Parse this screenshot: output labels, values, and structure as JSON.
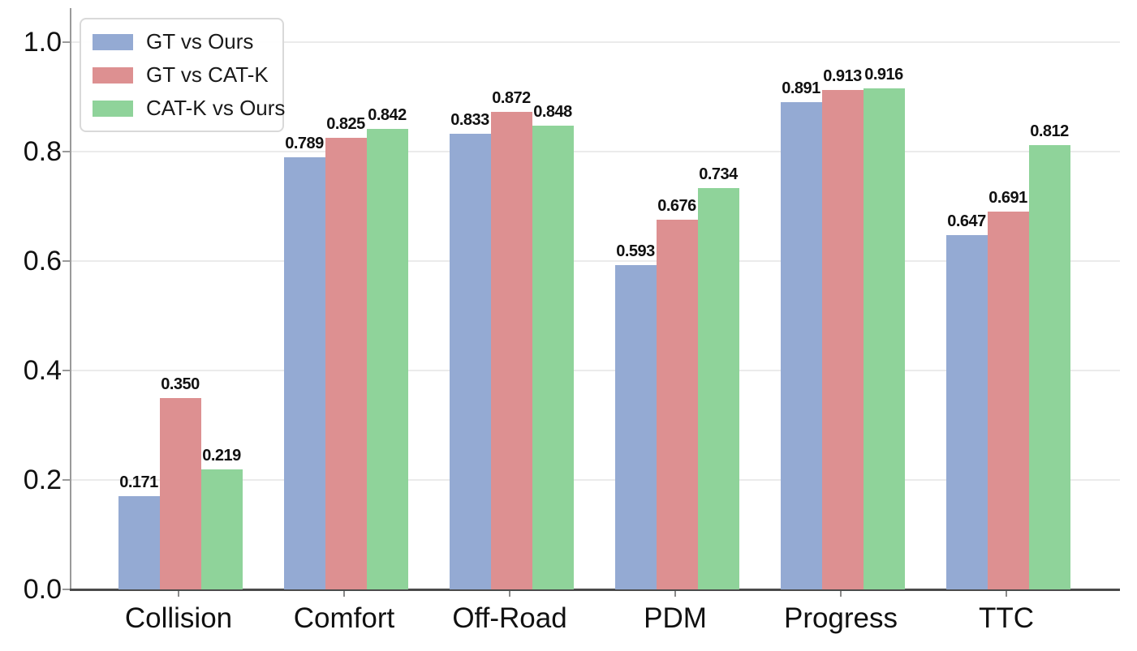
{
  "chart_data": {
    "type": "bar",
    "title": "",
    "xlabel": "",
    "ylabel": "",
    "categories": [
      "Collision",
      "Comfort",
      "Off-Road",
      "PDM",
      "Progress",
      "TTC"
    ],
    "series": [
      {
        "name": "GT vs Ours",
        "color": "#94AAD3",
        "values": [
          0.171,
          0.789,
          0.833,
          0.593,
          0.891,
          0.647
        ]
      },
      {
        "name": "GT vs CAT-K",
        "color": "#DD9091",
        "values": [
          0.35,
          0.825,
          0.872,
          0.676,
          0.913,
          0.691
        ]
      },
      {
        "name": "CAT-K vs Ours",
        "color": "#8FD39A",
        "values": [
          0.219,
          0.842,
          0.848,
          0.734,
          0.916,
          0.812
        ]
      }
    ],
    "value_labels": [
      [
        "0.171",
        "0.789",
        "0.833",
        "0.593",
        "0.891",
        "0.647"
      ],
      [
        "0.350",
        "0.825",
        "0.872",
        "0.676",
        "0.913",
        "0.691"
      ],
      [
        "0.219",
        "0.842",
        "0.848",
        "0.734",
        "0.916",
        "0.812"
      ]
    ],
    "ylim": [
      0.0,
      1.0
    ],
    "y_ticks": [
      "0.0",
      "0.2",
      "0.4",
      "0.6",
      "0.8",
      "1.0"
    ],
    "grid": true,
    "legend_position": "upper left",
    "colors": {
      "grid": "#ebebeb",
      "left_spine": "#9a9a9a",
      "bottom_spine": "#4a4a4a",
      "text": "#111111"
    }
  }
}
